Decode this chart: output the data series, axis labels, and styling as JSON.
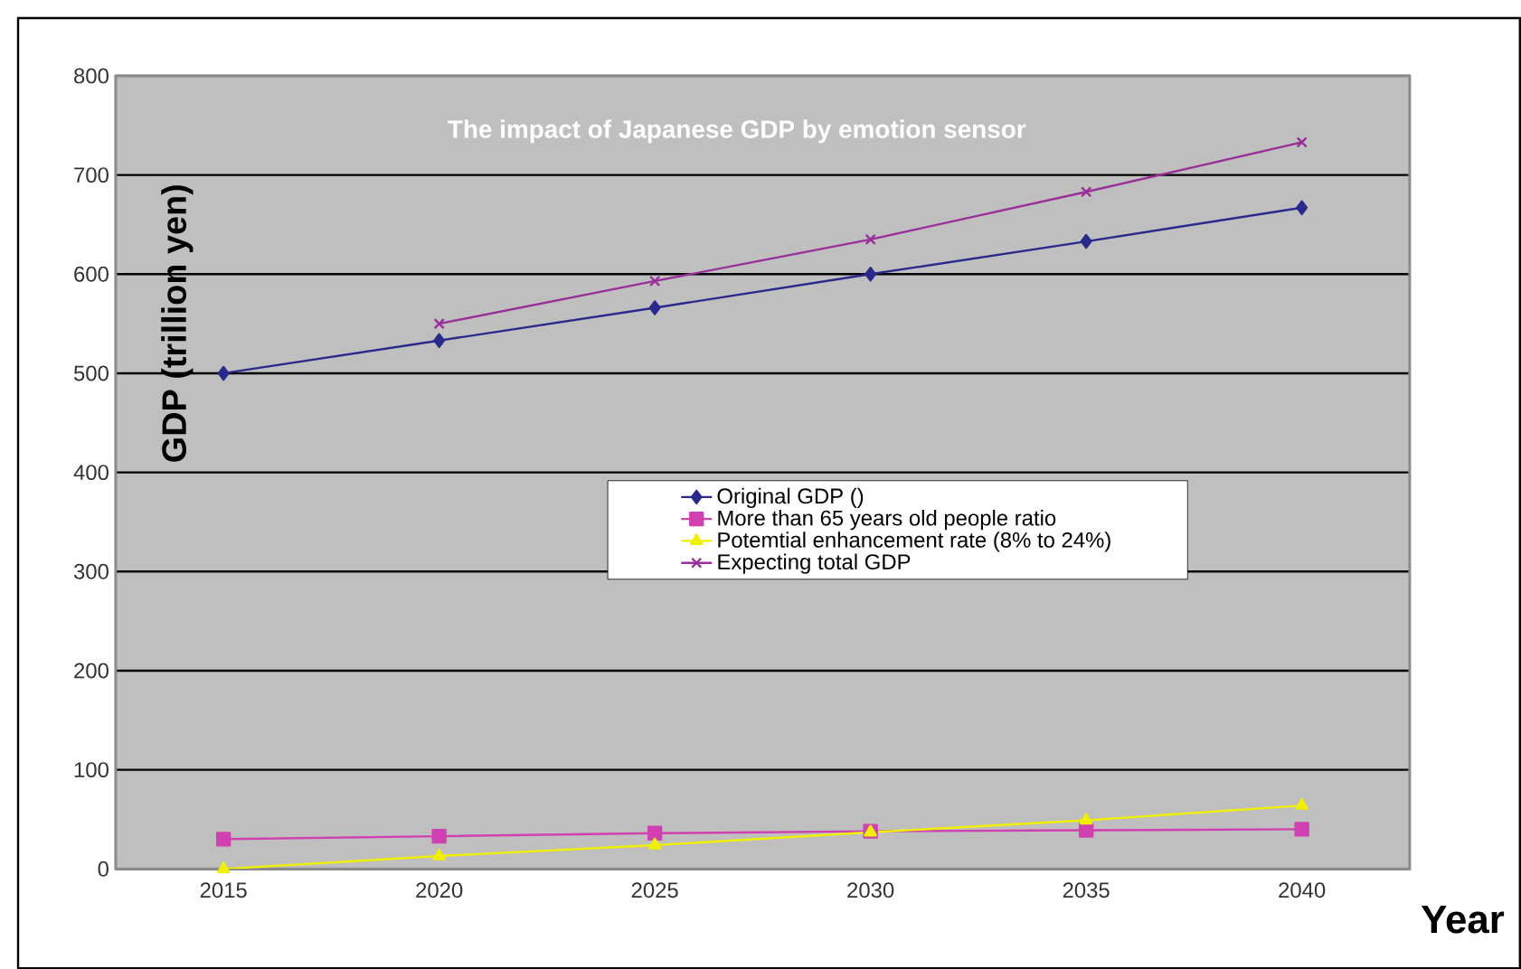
{
  "chart_data": {
    "type": "line",
    "title": "The impact of Japanese GDP by emotion sensor",
    "xlabel": "Year",
    "ylabel": "GDP (trillion yen)",
    "categories": [
      "2015",
      "2020",
      "2025",
      "2030",
      "2035",
      "2040"
    ],
    "series": [
      {
        "name": "Original GDP ()",
        "color": "#2a2a8c",
        "marker": "diamond",
        "values": [
          500,
          533,
          566,
          600,
          633,
          667
        ]
      },
      {
        "name": "More than 65 years old people ratio",
        "color": "#d040b0",
        "marker": "square",
        "values": [
          30,
          33,
          36,
          38,
          39,
          40
        ]
      },
      {
        "name": "Potemtial enhancement rate (8% to 24%)",
        "color": "#f0f000",
        "marker": "triangle",
        "values": [
          0,
          13,
          24,
          37,
          49,
          64
        ]
      },
      {
        "name": "Expecting total GDP",
        "color": "#9a2f9a",
        "marker": "cross",
        "values": [
          null,
          550,
          593,
          635,
          683,
          733
        ]
      }
    ],
    "ylim": [
      0,
      800
    ],
    "yticks": [
      0,
      100,
      200,
      300,
      400,
      500,
      600,
      700,
      800
    ],
    "grid": "y",
    "legend": "center right",
    "line_style": "solid"
  }
}
